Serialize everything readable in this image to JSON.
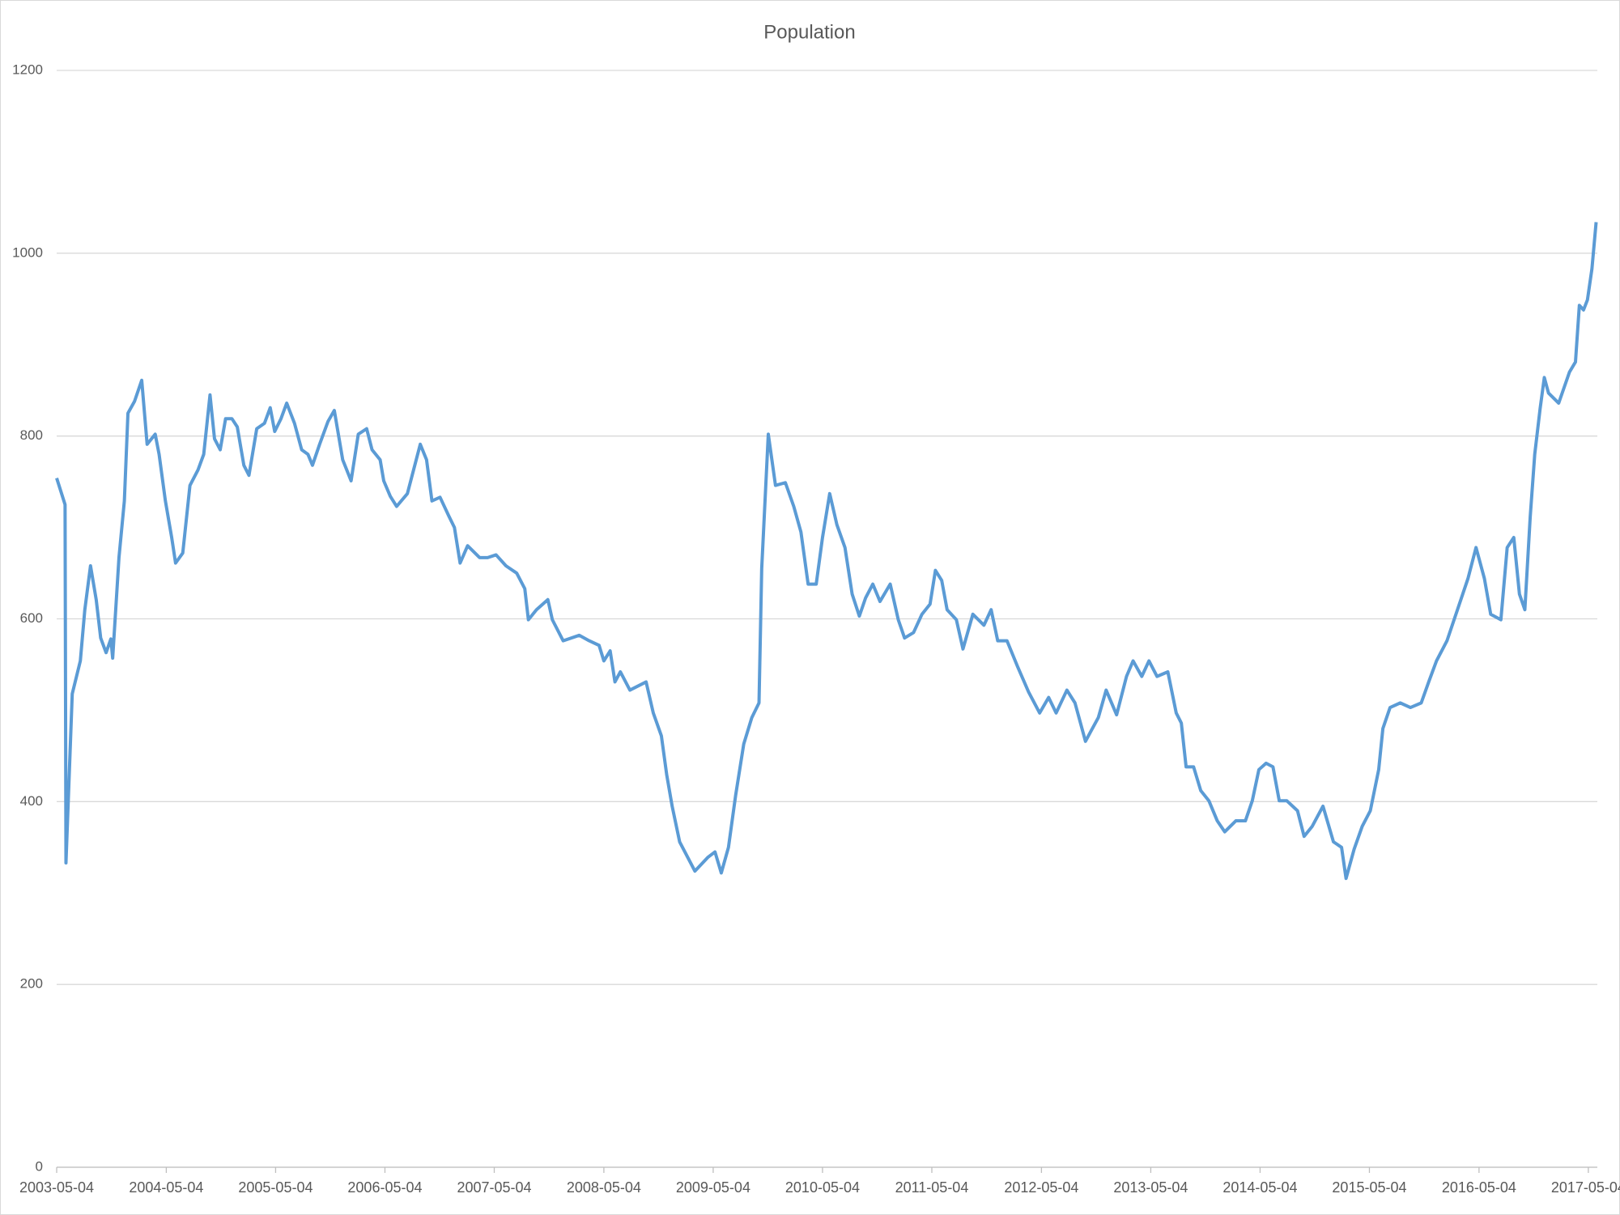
{
  "chart_data": {
    "type": "line",
    "title": "Population",
    "x": [
      "2003-05-04",
      "2003-06-01",
      "2003-06-04",
      "2003-06-25",
      "2003-07-22",
      "2003-08-06",
      "2003-08-25",
      "2003-09-13",
      "2003-09-28",
      "2003-10-16",
      "2003-11-01",
      "2003-11-07",
      "2003-11-28",
      "2003-12-16",
      "2003-12-28",
      "2004-01-19",
      "2004-02-12",
      "2004-03-01",
      "2004-03-28",
      "2004-04-10",
      "2004-05-01",
      "2004-05-22",
      "2004-06-04",
      "2004-06-28",
      "2004-07-22",
      "2004-08-18",
      "2004-09-06",
      "2004-09-27",
      "2004-10-12",
      "2004-10-31",
      "2004-11-18",
      "2004-12-09",
      "2004-12-27",
      "2005-01-18",
      "2005-02-04",
      "2005-03-02",
      "2005-03-28",
      "2005-04-16",
      "2005-05-01",
      "2005-05-22",
      "2005-06-10",
      "2005-07-06",
      "2005-07-30",
      "2005-08-20",
      "2005-09-04",
      "2005-09-28",
      "2005-10-26",
      "2005-11-16",
      "2005-12-14",
      "2006-01-11",
      "2006-02-04",
      "2006-03-04",
      "2006-03-22",
      "2006-04-18",
      "2006-04-30",
      "2006-05-22",
      "2006-06-12",
      "2006-07-18",
      "2006-08-30",
      "2006-09-20",
      "2006-10-08",
      "2006-11-04",
      "2006-12-04",
      "2006-12-22",
      "2007-01-10",
      "2007-02-04",
      "2007-03-16",
      "2007-04-12",
      "2007-05-10",
      "2007-06-12",
      "2007-07-18",
      "2007-08-14",
      "2007-08-26",
      "2007-09-22",
      "2007-10-30",
      "2007-11-14",
      "2007-12-20",
      "2008-02-12",
      "2008-03-16",
      "2008-04-18",
      "2008-05-04",
      "2008-05-25",
      "2008-06-10",
      "2008-06-28",
      "2008-07-30",
      "2008-09-22",
      "2008-10-16",
      "2008-11-12",
      "2008-11-30",
      "2008-12-18",
      "2009-01-12",
      "2009-02-08",
      "2009-03-04",
      "2009-04-16",
      "2009-05-10",
      "2009-05-31",
      "2009-06-24",
      "2009-07-18",
      "2009-08-14",
      "2009-09-10",
      "2009-10-04",
      "2009-10-13",
      "2009-11-04",
      "2009-11-28",
      "2009-12-31",
      "2010-01-28",
      "2010-02-21",
      "2010-03-17",
      "2010-04-13",
      "2010-05-04",
      "2010-05-28",
      "2010-06-21",
      "2010-07-18",
      "2010-08-11",
      "2010-09-04",
      "2010-09-25",
      "2010-10-19",
      "2010-11-12",
      "2010-12-16",
      "2011-01-12",
      "2011-02-02",
      "2011-03-04",
      "2011-04-01",
      "2011-04-28",
      "2011-05-16",
      "2011-06-06",
      "2011-06-24",
      "2011-07-25",
      "2011-08-16",
      "2011-09-18",
      "2011-10-25",
      "2011-11-18",
      "2011-12-10",
      "2012-01-10",
      "2012-02-14",
      "2012-03-22",
      "2012-04-28",
      "2012-05-28",
      "2012-06-22",
      "2012-07-28",
      "2012-08-24",
      "2012-09-28",
      "2012-10-16",
      "2012-11-10",
      "2012-12-06",
      "2013-01-10",
      "2013-02-12",
      "2013-03-06",
      "2013-04-04",
      "2013-04-28",
      "2013-05-25",
      "2013-06-30",
      "2013-07-28",
      "2013-08-14",
      "2013-08-30",
      "2013-09-24",
      "2013-10-18",
      "2013-11-14",
      "2013-12-12",
      "2014-01-06",
      "2014-02-12",
      "2014-03-16",
      "2014-04-08",
      "2014-04-30",
      "2014-05-24",
      "2014-06-16",
      "2014-07-07",
      "2014-08-01",
      "2014-09-06",
      "2014-09-28",
      "2014-10-25",
      "2014-11-30",
      "2015-01-04",
      "2015-01-31",
      "2015-02-15",
      "2015-03-14",
      "2015-04-10",
      "2015-05-07",
      "2015-06-04",
      "2015-06-18",
      "2015-07-12",
      "2015-08-15",
      "2015-09-18",
      "2015-10-24",
      "2015-11-18",
      "2015-12-14",
      "2016-01-18",
      "2016-02-22",
      "2016-03-28",
      "2016-04-24",
      "2016-05-22",
      "2016-06-12",
      "2016-07-16",
      "2016-08-06",
      "2016-08-28",
      "2016-09-16",
      "2016-10-04",
      "2016-10-22",
      "2016-11-06",
      "2016-11-24",
      "2016-12-08",
      "2016-12-22",
      "2017-01-25",
      "2017-03-02",
      "2017-03-22",
      "2017-04-04",
      "2017-04-18",
      "2017-05-01",
      "2017-05-16",
      "2017-05-30"
    ],
    "series": [
      {
        "name": "Population",
        "color": "#5b9bd5",
        "values": [
          754,
          725,
          333,
          518,
          554,
          610,
          658,
          621,
          579,
          563,
          578,
          557,
          667,
          729,
          825,
          838,
          861,
          791,
          802,
          780,
          729,
          689,
          661,
          672,
          746,
          763,
          780,
          845,
          797,
          785,
          819,
          819,
          810,
          768,
          757,
          808,
          814,
          831,
          805,
          819,
          836,
          814,
          785,
          780,
          768,
          791,
          816,
          828,
          774,
          751,
          802,
          808,
          785,
          774,
          751,
          734,
          723,
          737,
          791,
          774,
          729,
          733,
          712,
          700,
          661,
          680,
          667,
          667,
          670,
          658,
          650,
          633,
          599,
          610,
          621,
          599,
          576,
          582,
          576,
          571,
          554,
          565,
          531,
          542,
          522,
          531,
          497,
          472,
          429,
          395,
          356,
          339,
          324,
          339,
          345,
          322,
          350,
          407,
          463,
          492,
          508,
          655,
          802,
          746,
          749,
          723,
          695,
          638,
          638,
          689,
          737,
          703,
          678,
          627,
          603,
          623,
          638,
          619,
          638,
          599,
          579,
          585,
          605,
          616,
          653,
          642,
          610,
          599,
          567,
          605,
          593,
          610,
          576,
          576,
          548,
          520,
          497,
          514,
          497,
          522,
          508,
          466,
          477,
          492,
          522,
          495,
          537,
          554,
          537,
          554,
          537,
          542,
          497,
          486,
          438,
          438,
          412,
          401,
          379,
          367,
          379,
          379,
          401,
          435,
          442,
          438,
          401,
          401,
          390,
          362,
          373,
          395,
          356,
          350,
          316,
          348,
          373,
          390,
          435,
          480,
          503,
          508,
          503,
          508,
          531,
          554,
          576,
          610,
          644,
          678,
          644,
          605,
          599,
          678,
          689,
          627,
          610,
          712,
          780,
          830,
          864,
          847,
          836,
          870,
          881,
          943,
          938,
          949,
          983,
          1034
        ]
      }
    ],
    "xlim": [
      "2003-05-04",
      "2017-06-03"
    ],
    "xticks": [
      "2003-05-04",
      "2004-05-04",
      "2005-05-04",
      "2006-05-04",
      "2007-05-04",
      "2008-05-04",
      "2009-05-04",
      "2010-05-04",
      "2011-05-04",
      "2012-05-04",
      "2013-05-04",
      "2014-05-04",
      "2015-05-04",
      "2016-05-04",
      "2017-05-04"
    ],
    "ylim": [
      0,
      1200
    ],
    "yticks": [
      0,
      200,
      400,
      600,
      800,
      1000,
      1200
    ],
    "grid": true
  }
}
